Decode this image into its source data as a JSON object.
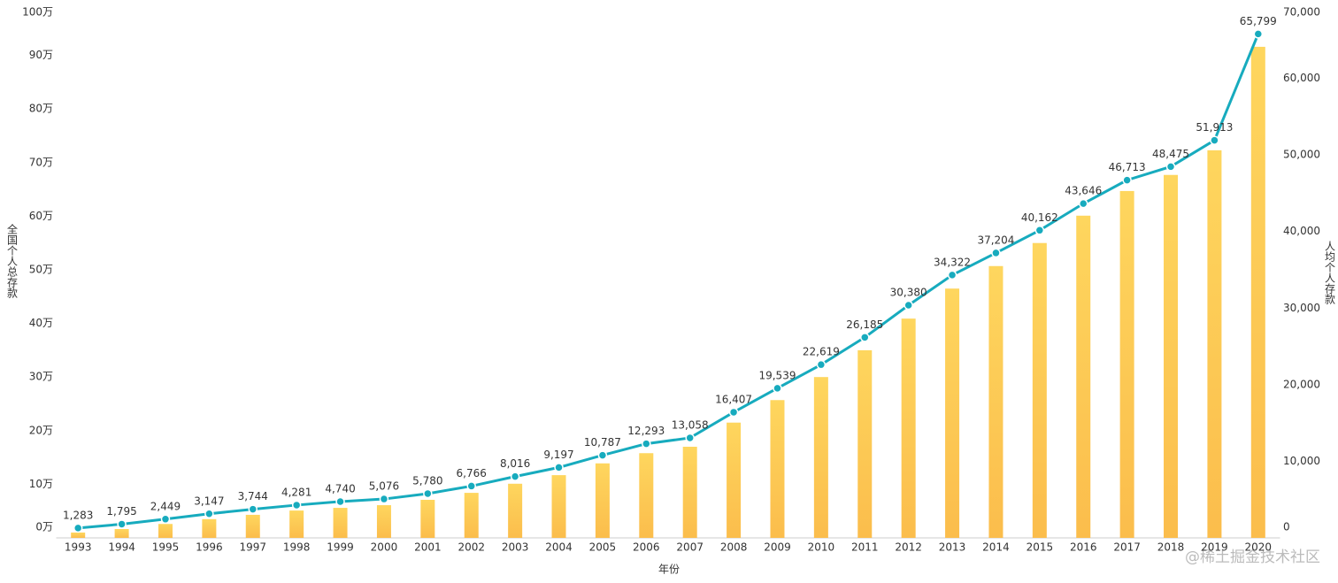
{
  "chart_data": {
    "type": "bar-line",
    "xlabel": "年份",
    "ylabel": "全国个人总存款",
    "y2label": "人均个人存款",
    "watermark": "@稀土掘金技术社区",
    "categories": [
      "1993",
      "1994",
      "1995",
      "1996",
      "1997",
      "1998",
      "1999",
      "2000",
      "2001",
      "2002",
      "2003",
      "2004",
      "2005",
      "2006",
      "2007",
      "2008",
      "2009",
      "2010",
      "2011",
      "2012",
      "2013",
      "2014",
      "2015",
      "2016",
      "2017",
      "2018",
      "2019",
      "2020"
    ],
    "series": [
      {
        "type": "bar",
        "color": "#fcc952",
        "values": [
          1,
          1.65,
          2.6,
          3.5,
          4.3,
          5.1,
          5.6,
          6.1,
          7.1,
          8.4,
          10.1,
          11.7,
          13.9,
          15.8,
          17,
          21.5,
          25.7,
          30,
          35,
          40.9,
          46.5,
          50.7,
          55,
          60.1,
          64.7,
          67.7,
          72.3,
          91.6
        ]
      },
      {
        "type": "line",
        "axis": "y2",
        "color": "#17abbe",
        "values": [
          1283,
          1795,
          2449,
          3147,
          3744,
          4281,
          4740,
          5076,
          5780,
          6766,
          8016,
          9197,
          10787,
          12293,
          13058,
          16407,
          19539,
          22619,
          26185,
          30380,
          34322,
          37204,
          40162,
          43646,
          46713,
          48475,
          51913,
          65799
        ],
        "value_labels": [
          "1,283",
          "1,795",
          "2,449",
          "3,147",
          "3,744",
          "4,281",
          "4,740",
          "5,076",
          "5,780",
          "6,766",
          "8,016",
          "9,197",
          "10,787",
          "12,293",
          "13,058",
          "16,407",
          "19,539",
          "22,619",
          "26,185",
          "30,380",
          "34,322",
          "37,204",
          "40,162",
          "43,646",
          "46,713",
          "48,475",
          "51,913",
          "65,799"
        ]
      }
    ],
    "ylim": [
      0,
      100
    ],
    "yticks": [
      {
        "value": 0,
        "label": "0万"
      },
      {
        "value": 10,
        "label": "10万"
      },
      {
        "value": 20,
        "label": "20万"
      },
      {
        "value": 30,
        "label": "30万"
      },
      {
        "value": 40,
        "label": "40万"
      },
      {
        "value": 50,
        "label": "50万"
      },
      {
        "value": 60,
        "label": "60万"
      },
      {
        "value": 70,
        "label": "70万"
      },
      {
        "value": 80,
        "label": "80万"
      },
      {
        "value": 90,
        "label": "90万"
      },
      {
        "value": 100,
        "label": "100万"
      }
    ],
    "y2lim": [
      0,
      70000
    ],
    "y2ticks": [
      0,
      {
        "value": 10000,
        "label": "10,000"
      },
      {
        "value": 20000,
        "label": "20,000"
      },
      {
        "value": 30000,
        "label": "30,000"
      },
      {
        "value": 40000,
        "label": "40,000"
      },
      {
        "value": 50000,
        "label": "50,000"
      },
      {
        "value": 60000,
        "label": "60,000"
      },
      {
        "value": 70000,
        "label": "70,000"
      }
    ],
    "grid": false
  }
}
